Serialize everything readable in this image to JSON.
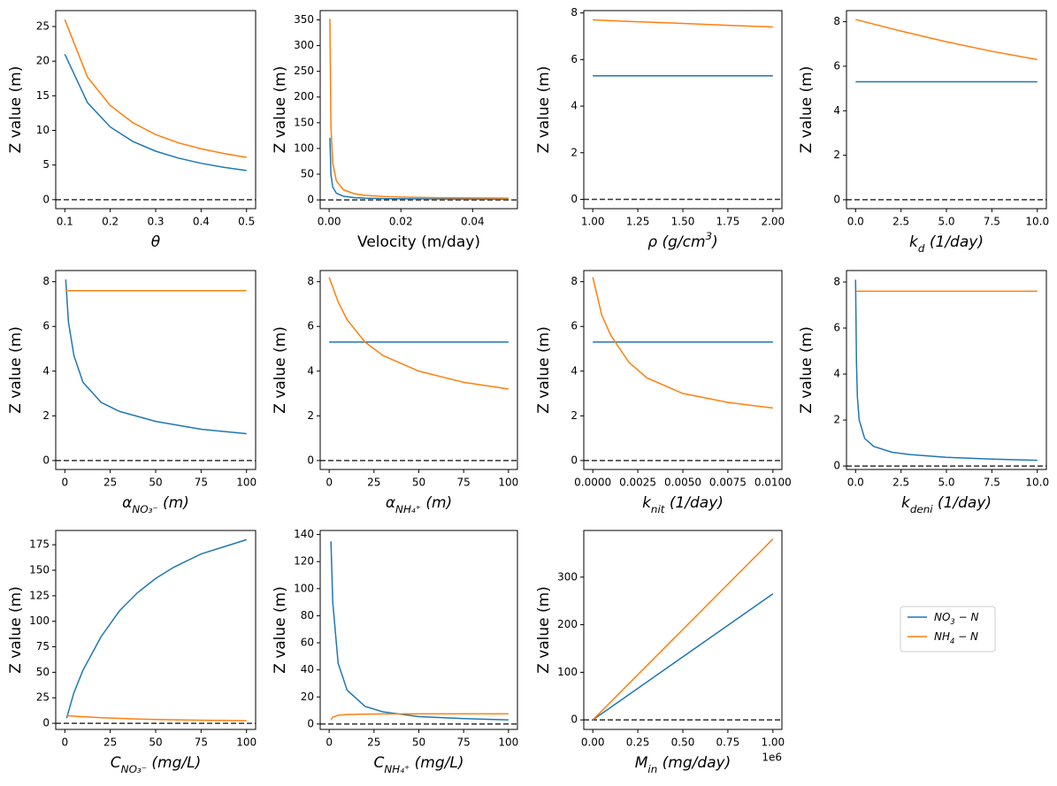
{
  "chart_data": [
    {
      "type": "line",
      "ylabel": "Z value (m)",
      "math_label": true,
      "xlabel": [
        {
          "t": "θ"
        }
      ],
      "xlim": [
        0.08,
        0.52
      ],
      "ylim": [
        -1.3,
        27.3
      ],
      "xticks": [
        0.1,
        0.2,
        0.3,
        0.4,
        0.5
      ],
      "yticks": [
        0,
        5,
        10,
        15,
        20,
        25
      ],
      "hline": 0,
      "series": [
        {
          "color": "#1f77b4",
          "x": [
            0.1,
            0.15,
            0.2,
            0.25,
            0.3,
            0.35,
            0.4,
            0.45,
            0.5
          ],
          "values": [
            21,
            14,
            10.5,
            8.4,
            7,
            6,
            5.25,
            4.67,
            4.2
          ]
        },
        {
          "color": "#ff7f0e",
          "x": [
            0.1,
            0.15,
            0.2,
            0.25,
            0.3,
            0.35,
            0.4,
            0.45,
            0.5
          ],
          "values": [
            26,
            17.7,
            13.6,
            11.1,
            9.4,
            8.2,
            7.35,
            6.66,
            6.1
          ]
        }
      ]
    },
    {
      "type": "line",
      "ylabel": "Z value (m)",
      "math_label": false,
      "xlabel": [
        {
          "t": "Velocity (m/day)"
        }
      ],
      "xlim": [
        -0.0025,
        0.0525
      ],
      "ylim": [
        -17,
        368
      ],
      "xticks": [
        {
          "value": 0,
          "label": "0.00"
        },
        0.02,
        0.04
      ],
      "yticks": [
        0,
        50,
        100,
        150,
        200,
        250,
        300,
        350
      ],
      "hline": 0,
      "series": [
        {
          "color": "#1f77b4",
          "x": [
            0.0002,
            0.0005,
            0.001,
            0.002,
            0.004,
            0.007,
            0.01,
            0.015,
            0.02,
            0.03,
            0.04,
            0.05
          ],
          "values": [
            121,
            49,
            25,
            13,
            7,
            4.4,
            3.4,
            2.6,
            2.2,
            1.8,
            1.6,
            1.5
          ]
        },
        {
          "color": "#ff7f0e",
          "x": [
            0.0002,
            0.0005,
            0.001,
            0.002,
            0.004,
            0.007,
            0.01,
            0.015,
            0.02,
            0.03,
            0.04,
            0.05
          ],
          "values": [
            352,
            142,
            72,
            37,
            19.5,
            12,
            9,
            6.7,
            5.5,
            4.3,
            3.8,
            3.4
          ]
        }
      ]
    },
    {
      "type": "line",
      "ylabel": "Z value (m)",
      "math_label": true,
      "xlabel": [
        {
          "t": "ρ   (g/cm"
        },
        {
          "t": "3",
          "shift": "super"
        },
        {
          "t": ")"
        }
      ],
      "xlim": [
        0.95,
        2.05
      ],
      "ylim": [
        -0.4,
        8.1
      ],
      "xticks": [
        {
          "value": 1,
          "label": "1.00"
        },
        1.25,
        {
          "value": 1.5,
          "label": "1.50"
        },
        1.75,
        {
          "value": 2,
          "label": "2.00"
        }
      ],
      "yticks": [
        0,
        2,
        4,
        6,
        8
      ],
      "hline": 0,
      "series": [
        {
          "color": "#1f77b4",
          "x": [
            1,
            2
          ],
          "values": [
            5.3,
            5.3
          ]
        },
        {
          "color": "#ff7f0e",
          "x": [
            1,
            1.25,
            1.5,
            1.75,
            2
          ],
          "values": [
            7.7,
            7.62,
            7.55,
            7.47,
            7.4
          ]
        }
      ]
    },
    {
      "type": "line",
      "ylabel": "Z value (m)",
      "math_label": true,
      "xlabel": [
        {
          "t": "k"
        },
        {
          "t": "d",
          "shift": "sub"
        },
        {
          "t": "   (1/day)"
        }
      ],
      "xlim": [
        -0.5,
        10.5
      ],
      "ylim": [
        -0.4,
        8.5
      ],
      "xticks": [
        {
          "value": 0,
          "label": "0.0"
        },
        2.5,
        {
          "value": 5,
          "label": "5.0"
        },
        7.5,
        {
          "value": 10,
          "label": "10.0"
        }
      ],
      "yticks": [
        0,
        2,
        4,
        6,
        8
      ],
      "hline": 0,
      "series": [
        {
          "color": "#1f77b4",
          "x": [
            0,
            10
          ],
          "values": [
            5.3,
            5.3
          ]
        },
        {
          "color": "#ff7f0e",
          "x": [
            0,
            2.5,
            5,
            7.5,
            10
          ],
          "values": [
            8.1,
            7.58,
            7.1,
            6.67,
            6.3
          ]
        }
      ]
    },
    {
      "type": "line",
      "ylabel": "Z value (m)",
      "math_label": true,
      "xlabel": [
        {
          "t": "α"
        },
        {
          "t": "NO₃⁻",
          "shift": "sub"
        },
        {
          "t": "   (m)"
        }
      ],
      "xlim": [
        -5,
        105
      ],
      "ylim": [
        -0.4,
        8.5
      ],
      "xticks": [
        0,
        25,
        50,
        75,
        100
      ],
      "yticks": [
        0,
        2,
        4,
        6,
        8
      ],
      "hline": 0,
      "series": [
        {
          "color": "#1f77b4",
          "x": [
            0.5,
            2,
            5,
            10,
            20,
            30,
            50,
            75,
            100
          ],
          "values": [
            8.1,
            6.2,
            4.7,
            3.5,
            2.6,
            2.2,
            1.75,
            1.4,
            1.2
          ]
        },
        {
          "color": "#ff7f0e",
          "x": [
            0.5,
            100
          ],
          "values": [
            7.6,
            7.6
          ]
        }
      ]
    },
    {
      "type": "line",
      "ylabel": "Z value (m)",
      "math_label": true,
      "xlabel": [
        {
          "t": "α"
        },
        {
          "t": "NH₄⁺",
          "shift": "sub"
        },
        {
          "t": "   (m)"
        }
      ],
      "xlim": [
        -5,
        105
      ],
      "ylim": [
        -0.4,
        8.5
      ],
      "xticks": [
        0,
        25,
        50,
        75,
        100
      ],
      "yticks": [
        0,
        2,
        4,
        6,
        8
      ],
      "hline": 0,
      "series": [
        {
          "color": "#1f77b4",
          "x": [
            0,
            100
          ],
          "values": [
            5.3,
            5.3
          ]
        },
        {
          "color": "#ff7f0e",
          "x": [
            0,
            5,
            10,
            20,
            30,
            50,
            75,
            100
          ],
          "values": [
            8.2,
            7.1,
            6.3,
            5.3,
            4.7,
            4.0,
            3.5,
            3.2
          ]
        }
      ]
    },
    {
      "type": "line",
      "ylabel": "Z value (m)",
      "math_label": true,
      "xlabel": [
        {
          "t": "k"
        },
        {
          "t": "nit",
          "shift": "sub"
        },
        {
          "t": "   (1/day)"
        }
      ],
      "xlim": [
        -0.0005,
        0.0105
      ],
      "ylim": [
        -0.4,
        8.5
      ],
      "xticks": [
        {
          "value": 0,
          "label": "0.0000"
        },
        {
          "value": 0.0025,
          "label": "0.0025"
        },
        {
          "value": 0.005,
          "label": "0.0050"
        },
        {
          "value": 0.0075,
          "label": "0.0075"
        },
        {
          "value": 0.01,
          "label": "0.0100"
        }
      ],
      "yticks": [
        0,
        2,
        4,
        6,
        8
      ],
      "hline": 0,
      "series": [
        {
          "color": "#1f77b4",
          "x": [
            0,
            0.01
          ],
          "values": [
            5.3,
            5.3
          ]
        },
        {
          "color": "#ff7f0e",
          "x": [
            0,
            0.0005,
            0.001,
            0.002,
            0.003,
            0.005,
            0.0075,
            0.01
          ],
          "values": [
            8.2,
            6.5,
            5.6,
            4.4,
            3.7,
            3.0,
            2.6,
            2.35
          ]
        }
      ]
    },
    {
      "type": "line",
      "ylabel": "Z value (m)",
      "math_label": true,
      "xlabel": [
        {
          "t": "k"
        },
        {
          "t": "deni",
          "shift": "sub"
        },
        {
          "t": "   (1/day)"
        }
      ],
      "xlim": [
        -0.5,
        10.5
      ],
      "ylim": [
        -0.15,
        8.5
      ],
      "xticks": [
        {
          "value": 0,
          "label": "0.0"
        },
        2.5,
        {
          "value": 5,
          "label": "5.0"
        },
        7.5,
        {
          "value": 10,
          "label": "10.0"
        }
      ],
      "yticks": [
        0,
        2,
        4,
        6,
        8
      ],
      "hline": 0,
      "series": [
        {
          "color": "#1f77b4",
          "x": [
            0,
            0.05,
            0.1,
            0.2,
            0.5,
            1,
            2,
            3,
            5,
            7.5,
            10
          ],
          "values": [
            8.1,
            4.5,
            3,
            2,
            1.2,
            0.85,
            0.6,
            0.5,
            0.38,
            0.3,
            0.25
          ]
        },
        {
          "color": "#ff7f0e",
          "x": [
            0.05,
            10
          ],
          "values": [
            7.6,
            7.6
          ]
        }
      ]
    },
    {
      "type": "line",
      "ylabel": "Z value (m)",
      "math_label": true,
      "xlabel": [
        {
          "t": "C"
        },
        {
          "t": "NO₃⁻",
          "shift": "sub"
        },
        {
          "t": "   (mg/L)"
        }
      ],
      "xlim": [
        -5,
        105
      ],
      "ylim": [
        -6,
        189
      ],
      "xticks": [
        0,
        25,
        50,
        75,
        100
      ],
      "yticks": [
        0,
        25,
        50,
        75,
        100,
        125,
        150,
        175
      ],
      "hline": 0,
      "series": [
        {
          "color": "#1f77b4",
          "x": [
            1,
            5,
            10,
            20,
            30,
            40,
            50,
            60,
            75,
            100
          ],
          "values": [
            5,
            30,
            52,
            85,
            110,
            128,
            142,
            153,
            166,
            180
          ]
        },
        {
          "color": "#ff7f0e",
          "x": [
            1,
            5,
            10,
            20,
            30,
            40,
            50,
            60,
            75,
            100
          ],
          "values": [
            7.5,
            7,
            6.5,
            5.5,
            4.8,
            4.2,
            3.8,
            3.4,
            3,
            2.5
          ]
        }
      ]
    },
    {
      "type": "line",
      "ylabel": "Z value (m)",
      "math_label": true,
      "xlabel": [
        {
          "t": "C"
        },
        {
          "t": "NH₄⁺",
          "shift": "sub"
        },
        {
          "t": "   (mg/L)"
        }
      ],
      "xlim": [
        -5,
        105
      ],
      "ylim": [
        -4,
        143
      ],
      "xticks": [
        0,
        25,
        50,
        75,
        100
      ],
      "yticks": [
        0,
        20,
        40,
        60,
        80,
        100,
        120,
        140
      ],
      "hline": 0,
      "series": [
        {
          "color": "#1f77b4",
          "x": [
            1,
            2,
            5,
            10,
            20,
            30,
            50,
            75,
            100
          ],
          "values": [
            135,
            90,
            45,
            25,
            13,
            9,
            5.5,
            4,
            3
          ]
        },
        {
          "color": "#ff7f0e",
          "x": [
            1,
            2,
            5,
            10,
            20,
            30,
            50,
            75,
            100
          ],
          "values": [
            3,
            5,
            6.5,
            7,
            7.3,
            7.4,
            7.5,
            7.5,
            7.5
          ]
        }
      ]
    },
    {
      "type": "line",
      "ylabel": "Z value (m)",
      "math_label": true,
      "xlabel": [
        {
          "t": "M"
        },
        {
          "t": "in",
          "shift": "sub"
        },
        {
          "t": "   (mg/day)"
        }
      ],
      "x_offset_text": "1e6",
      "xlim": [
        -50000,
        1050000
      ],
      "ylim": [
        -20,
        398
      ],
      "xticks": [
        {
          "value": 0,
          "label": "0.00"
        },
        {
          "value": 250000,
          "label": "0.25"
        },
        {
          "value": 500000,
          "label": "0.50"
        },
        {
          "value": 750000,
          "label": "0.75"
        },
        {
          "value": 1000000,
          "label": "1.00"
        }
      ],
      "yticks": [
        0,
        100,
        200,
        300
      ],
      "hline": 0,
      "series": [
        {
          "color": "#1f77b4",
          "x": [
            0,
            1000000
          ],
          "values": [
            0,
            265
          ]
        },
        {
          "color": "#ff7f0e",
          "x": [
            0,
            1000000
          ],
          "values": [
            0,
            380
          ]
        }
      ]
    }
  ],
  "legend": {
    "entries": [
      {
        "label": [
          {
            "t": "NO"
          },
          {
            "t": "3",
            "shift": "sub"
          },
          {
            "t": " − N"
          }
        ],
        "color": "#1f77b4"
      },
      {
        "label": [
          {
            "t": "NH"
          },
          {
            "t": "4",
            "shift": "sub"
          },
          {
            "t": " − N"
          }
        ],
        "color": "#ff7f0e"
      }
    ]
  }
}
